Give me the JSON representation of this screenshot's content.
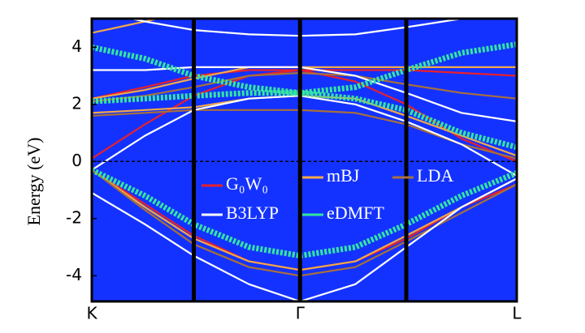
{
  "chart_data": {
    "type": "line",
    "ylabel": "Energy (eV)",
    "x": [
      0,
      0.125,
      0.24,
      0.37,
      0.49,
      0.62,
      0.74,
      0.87,
      1.0
    ],
    "xlim": [
      0,
      1
    ],
    "xticks": [
      {
        "value": 0,
        "label": "K"
      },
      {
        "value": 0.49,
        "label": "Γ"
      },
      {
        "value": 1,
        "label": "L"
      }
    ],
    "vlines": [
      0.24,
      0.49,
      0.74
    ],
    "hline": 0,
    "ylim": [
      -4.9,
      5
    ],
    "yticks": [
      4,
      2,
      0,
      -2,
      -4
    ],
    "background": "#1432ff",
    "series": [
      {
        "name": "G₀W₀",
        "color": "#e8202a",
        "values": [
          [
            -0.3,
            -1.5,
            -2.6,
            -3.5,
            -3.8,
            -3.5,
            -2.7,
            -1.6,
            -0.8
          ],
          [
            0.1,
            1.3,
            2.3,
            3.0,
            3.2,
            2.8,
            2.0,
            0.8,
            0
          ],
          [
            2.2,
            2.6,
            3.0,
            3.2,
            3.2,
            3.2,
            3.2,
            3.1,
            3.0
          ]
        ]
      },
      {
        "name": "mBJ",
        "color": "#f2a848",
        "values": [
          [
            -0.3,
            -1.6,
            -2.7,
            -3.5,
            -3.8,
            -3.5,
            -2.6,
            -1.6,
            -0.6
          ],
          [
            1.7,
            1.8,
            1.9,
            2.2,
            2.3,
            2.2,
            1.6,
            0.9,
            0.2
          ],
          [
            2.2,
            2.5,
            2.9,
            3.3,
            3.3,
            3.3,
            3.3,
            3.3,
            3.3
          ],
          [
            4.5,
            4.9,
            5.3,
            5.5,
            5.5,
            5.5,
            5.5,
            5.5,
            5.5
          ]
        ]
      },
      {
        "name": "LDA",
        "color": "#a8703a",
        "values": [
          [
            -0.3,
            -1.7,
            -2.9,
            -3.7,
            -4.0,
            -3.7,
            -2.8,
            -1.8,
            -0.8
          ],
          [
            1.6,
            1.7,
            1.8,
            1.8,
            1.8,
            1.7,
            1.3,
            0.6,
            0.1
          ],
          [
            2.1,
            2.3,
            2.6,
            3.0,
            3.1,
            3.0,
            2.7,
            2.4,
            2.2
          ]
        ]
      },
      {
        "name": "B3LYP",
        "color": "#ffffff",
        "values": [
          [
            -1.1,
            -2.2,
            -3.3,
            -4.3,
            -4.9,
            -4.3,
            -3.0,
            -1.6,
            -0.6
          ],
          [
            -0.3,
            0.9,
            1.8,
            2.2,
            2.3,
            2.0,
            1.4,
            0.6,
            -0.5
          ],
          [
            3.2,
            3.2,
            3.3,
            3.3,
            3.3,
            3.0,
            2.4,
            1.7,
            1.4
          ],
          [
            5.3,
            4.9,
            4.6,
            4.45,
            4.4,
            4.45,
            4.7,
            5.0,
            5.3
          ]
        ]
      },
      {
        "name": "eDMFT",
        "color": "#33e6a0",
        "values": [
          [
            -0.3,
            -1.2,
            -2.2,
            -3.0,
            -3.3,
            -3.0,
            -2.2,
            -1.2,
            -0.4
          ],
          [
            4.0,
            3.6,
            3.0,
            2.6,
            2.4,
            2.6,
            3.2,
            3.8,
            4.1
          ],
          [
            2.1,
            2.2,
            2.3,
            2.4,
            2.4,
            2.2,
            1.8,
            1.0,
            0.5
          ]
        ]
      }
    ]
  }
}
